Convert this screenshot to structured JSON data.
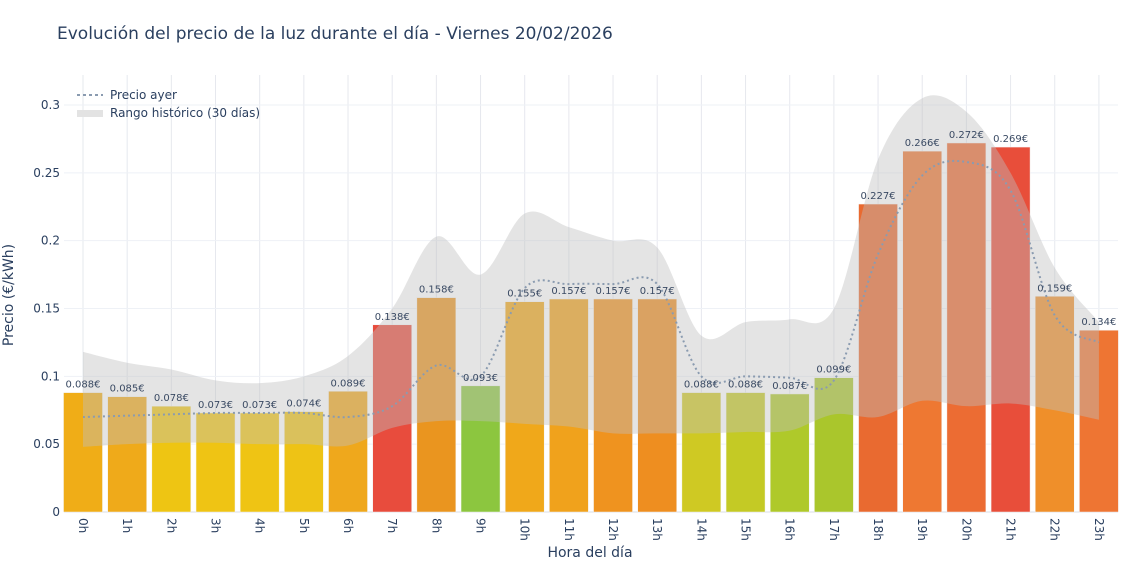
{
  "chart_data": {
    "type": "bar",
    "title": "Evolución del precio de la luz durante el día - Viernes 20/02/2026",
    "xlabel": "Hora del día",
    "ylabel": "Precio (€/kWh)",
    "ylim": [
      0,
      0.32
    ],
    "yticks": [
      "0",
      "0.05",
      "0.1",
      "0.15",
      "0.2",
      "0.25",
      "0.3"
    ],
    "grid": true,
    "legend_position": "top-left",
    "categories": [
      "0h",
      "1h",
      "2h",
      "3h",
      "4h",
      "5h",
      "6h",
      "7h",
      "8h",
      "9h",
      "10h",
      "11h",
      "12h",
      "13h",
      "14h",
      "15h",
      "16h",
      "17h",
      "18h",
      "19h",
      "20h",
      "21h",
      "22h",
      "23h"
    ],
    "values": [
      0.088,
      0.085,
      0.078,
      0.073,
      0.073,
      0.074,
      0.089,
      0.138,
      0.158,
      0.093,
      0.155,
      0.157,
      0.157,
      0.157,
      0.088,
      0.088,
      0.087,
      0.099,
      0.227,
      0.266,
      0.272,
      0.269,
      0.159,
      0.134
    ],
    "data_labels": [
      "0.088€",
      "0.085€",
      "0.078€",
      "0.073€",
      "0.073€",
      "0.074€",
      "0.089€",
      "0.138€",
      "0.158€",
      "0.093€",
      "0.155€",
      "0.157€",
      "0.157€",
      "0.157€",
      "0.088€",
      "0.088€",
      "0.087€",
      "0.099€",
      "0.227€",
      "0.266€",
      "0.272€",
      "0.269€",
      "0.159€",
      "0.134€"
    ],
    "bar_colors": [
      "#f0ad17",
      "#efaa1a",
      "#eec513",
      "#efc414",
      "#efc414",
      "#eec315",
      "#efa81c",
      "#e84c3d",
      "#ea951f",
      "#8cc63f",
      "#f0a81a",
      "#f0a21c",
      "#ef931f",
      "#ee8e20",
      "#cfc923",
      "#c4ca25",
      "#afc92a",
      "#aac62c",
      "#e96a30",
      "#ee7832",
      "#ec6c33",
      "#e84e3a",
      "#ef8f2a",
      "#ee7533"
    ],
    "series": [
      {
        "name": "Precio ayer",
        "style": "dotted",
        "color": "#8a9bb0",
        "values": [
          0.07,
          0.071,
          0.072,
          0.073,
          0.073,
          0.073,
          0.07,
          0.078,
          0.108,
          0.1,
          0.165,
          0.168,
          0.168,
          0.168,
          0.1,
          0.1,
          0.099,
          0.097,
          0.19,
          0.248,
          0.258,
          0.237,
          0.145,
          0.125
        ]
      },
      {
        "name": "Rango histórico (30 días)",
        "style": "band",
        "color": "#c8c8c8",
        "lower": [
          0.048,
          0.05,
          0.051,
          0.051,
          0.05,
          0.05,
          0.049,
          0.062,
          0.067,
          0.067,
          0.065,
          0.063,
          0.058,
          0.058,
          0.058,
          0.059,
          0.06,
          0.072,
          0.07,
          0.082,
          0.078,
          0.08,
          0.075,
          0.068
        ],
        "upper": [
          0.118,
          0.11,
          0.105,
          0.097,
          0.095,
          0.1,
          0.115,
          0.15,
          0.203,
          0.175,
          0.22,
          0.21,
          0.2,
          0.195,
          0.13,
          0.14,
          0.142,
          0.15,
          0.26,
          0.305,
          0.295,
          0.25,
          0.18,
          0.14
        ]
      }
    ]
  }
}
